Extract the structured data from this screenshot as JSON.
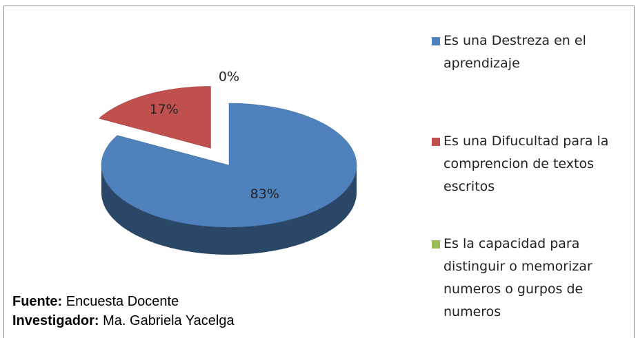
{
  "chart_data": {
    "type": "pie",
    "series": [
      {
        "name": "Es una Destreza en el aprendizaje",
        "color": "#4f81bd"
      },
      {
        "name": "Es una Difucultad para la comprencion de textos escritos",
        "color": "#c0504d"
      },
      {
        "name": "Es la capacidad para distinguir o memorizar numeros o gurpos de numeros",
        "color": "#9bbb59"
      }
    ],
    "values": [
      83,
      17,
      0
    ],
    "value_labels": [
      "83%",
      "17%",
      "0%"
    ],
    "source": {
      "label": "Fuente:",
      "text": "Encuesta Docente"
    },
    "investigator": {
      "label": "Investigador:",
      "text": "Ma. Gabriela Yacelga"
    }
  }
}
